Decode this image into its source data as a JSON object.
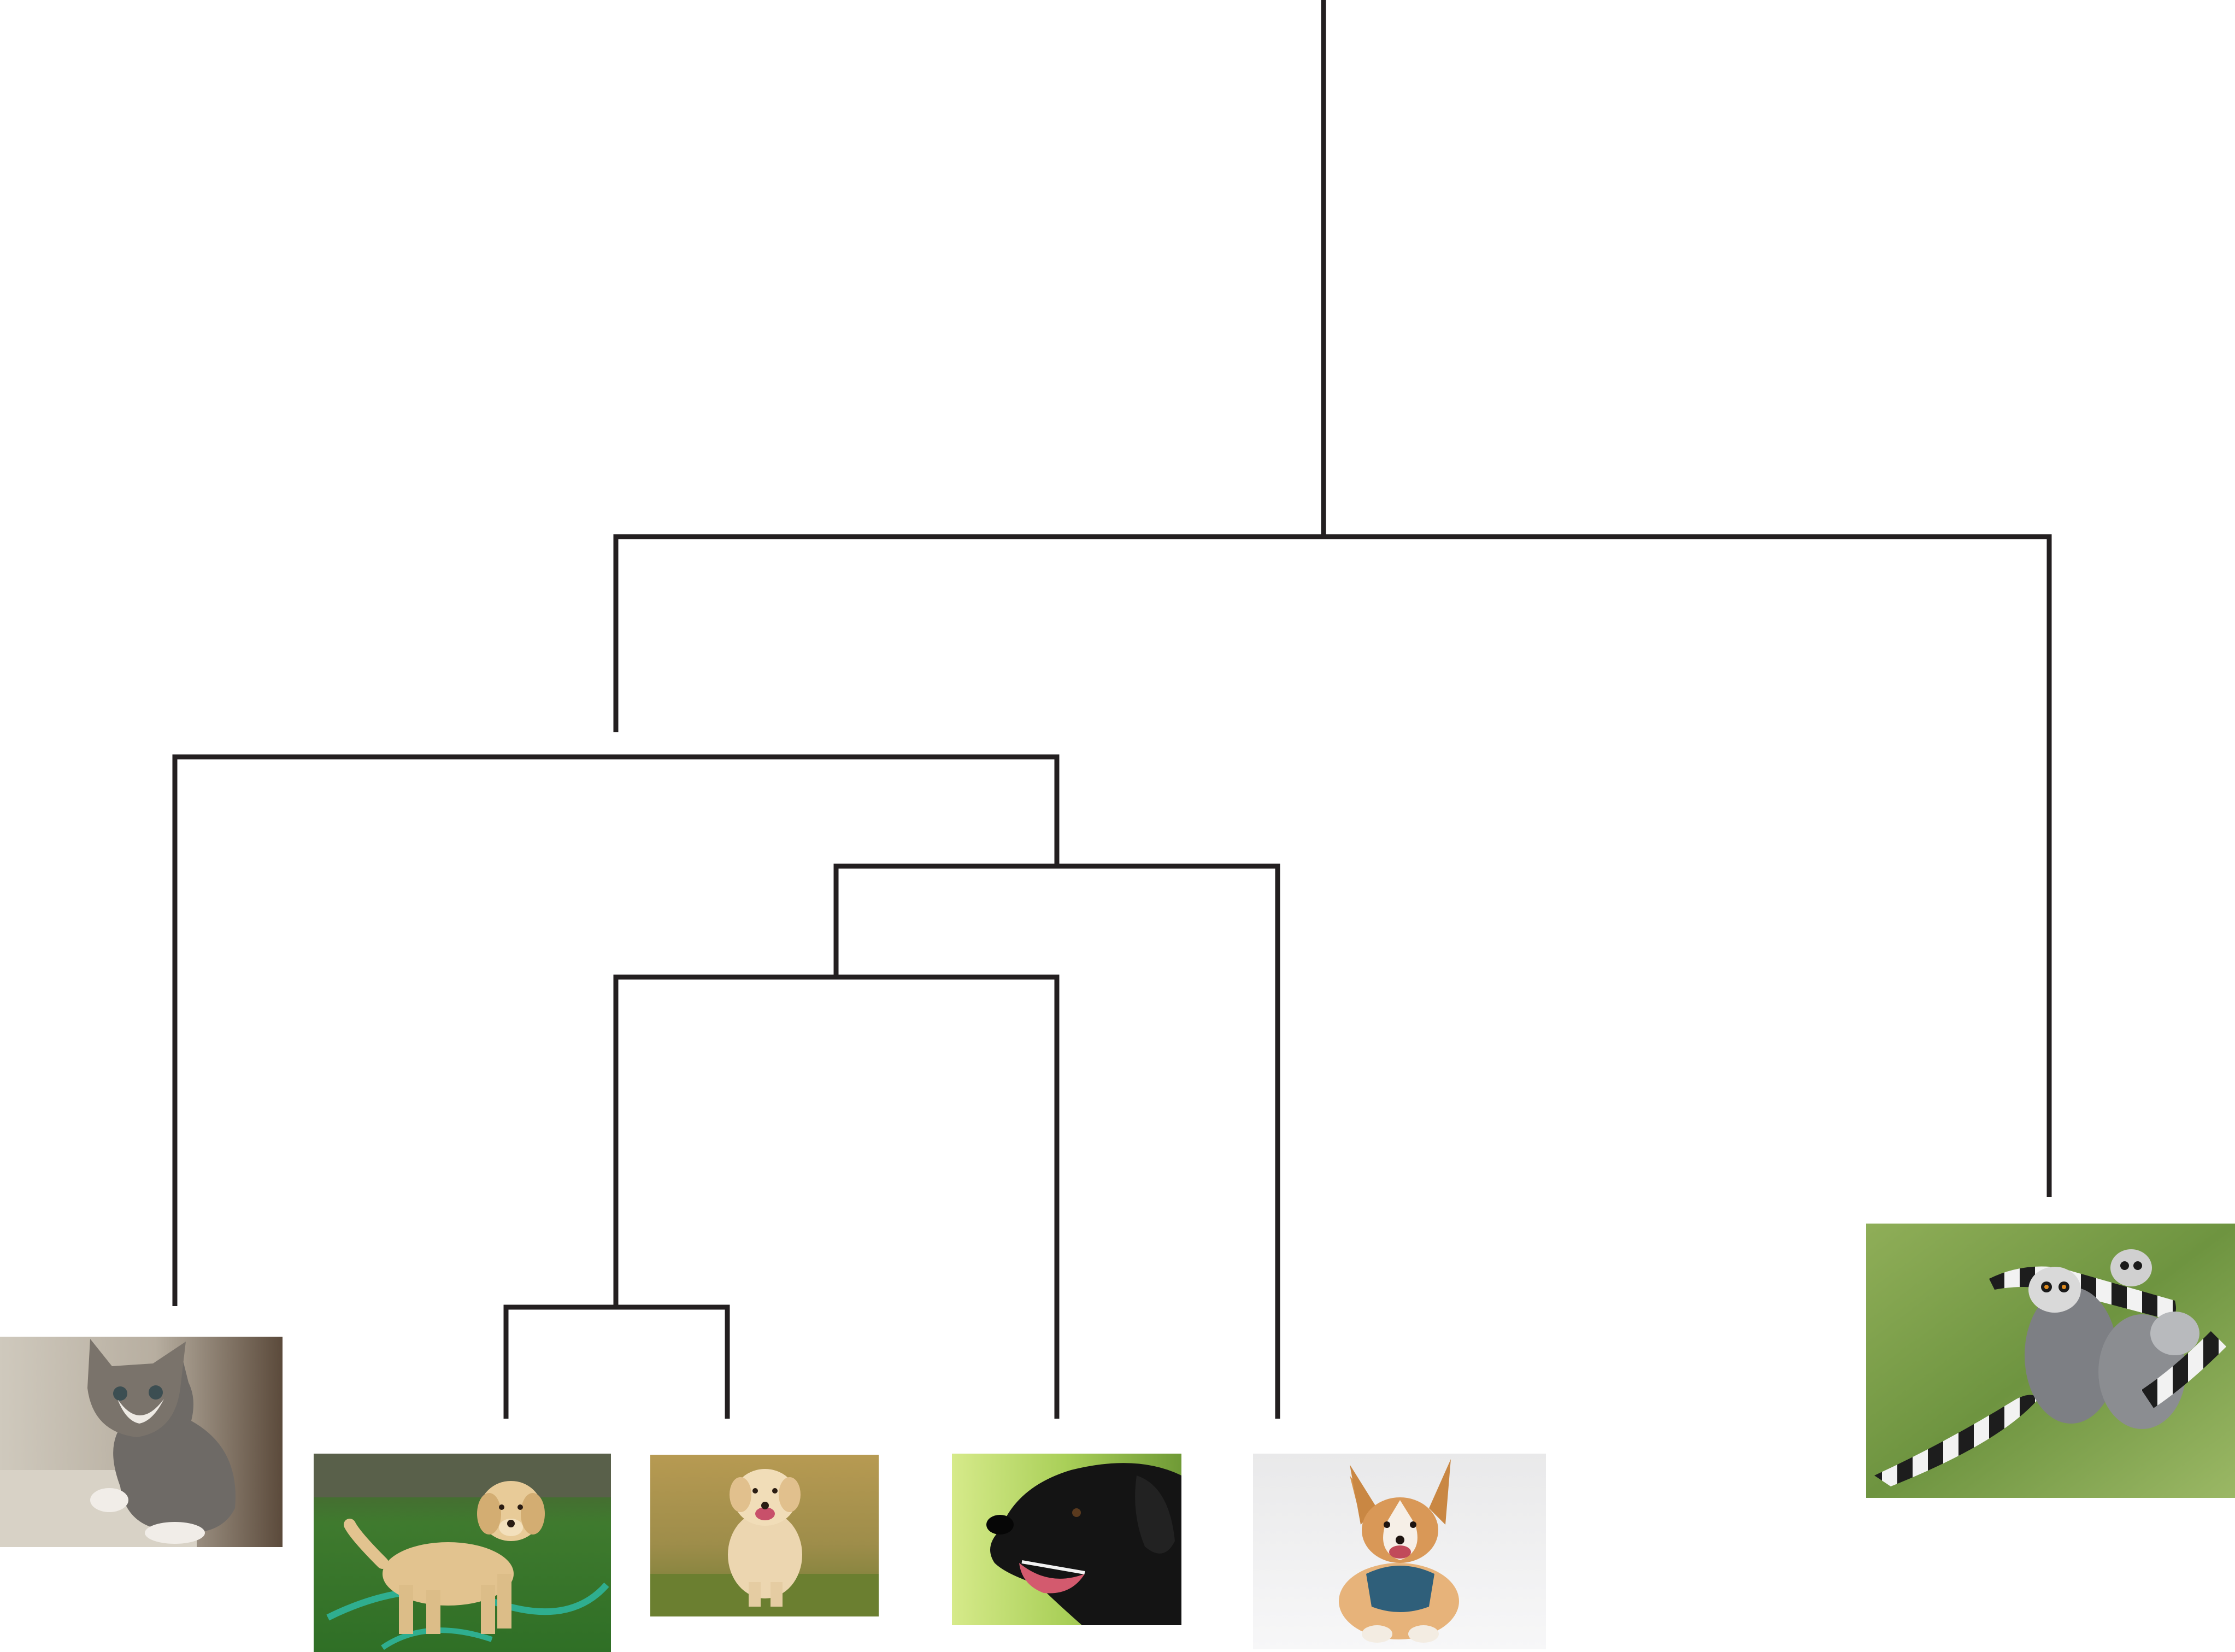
{
  "diagram": {
    "type": "dendrogram",
    "line_color": "#231f20",
    "background": "#ffffff",
    "leaves": [
      {
        "id": "kitten",
        "subject": "tabby-kitten"
      },
      {
        "id": "golden-puppy-grass",
        "subject": "golden-retriever-puppy"
      },
      {
        "id": "golden-puppy-running",
        "subject": "golden-retriever-puppy"
      },
      {
        "id": "black-labrador",
        "subject": "black-labrador"
      },
      {
        "id": "corgi",
        "subject": "corgi"
      },
      {
        "id": "lemurs",
        "subject": "ring-tailed-lemurs"
      }
    ],
    "merges": [
      {
        "id": "m1",
        "children": [
          "golden-puppy-grass",
          "golden-puppy-running"
        ]
      },
      {
        "id": "m2",
        "children": [
          "m1",
          "black-labrador"
        ]
      },
      {
        "id": "m3",
        "children": [
          "m2",
          "corgi"
        ]
      },
      {
        "id": "m4",
        "children": [
          "kitten",
          "m3"
        ]
      },
      {
        "id": "m5",
        "children": [
          "m4",
          "lemurs"
        ]
      }
    ]
  }
}
